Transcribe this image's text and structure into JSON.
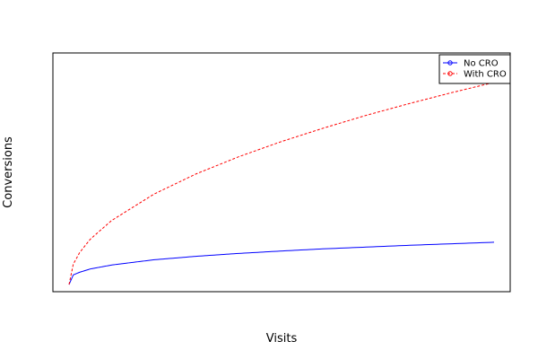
{
  "chart_data": {
    "type": "line",
    "title": "",
    "xlabel": "Visits",
    "ylabel": "Conversions",
    "x_ticks_shown": false,
    "y_ticks_shown": false,
    "grid": false,
    "legend_position": "top-right",
    "xlim": [
      0,
      100
    ],
    "ylim": [
      0,
      100
    ],
    "series": [
      {
        "name": "No CRO",
        "color": "#0000ff",
        "line_style": "solid",
        "x": [
          0,
          1,
          2.5,
          5,
          10,
          20,
          30,
          40,
          50,
          60,
          70,
          80,
          90,
          100
        ],
        "y": [
          0,
          4.4,
          5.6,
          7.1,
          8.9,
          11.3,
          12.9,
          14.2,
          15.3,
          16.3,
          17.1,
          17.9,
          18.6,
          19.3
        ]
      },
      {
        "name": "With CRO",
        "color": "#ff0000",
        "line_style": "dashed",
        "x": [
          0,
          1,
          2.5,
          5,
          10,
          20,
          30,
          40,
          50,
          60,
          70,
          80,
          90,
          100
        ],
        "y": [
          0,
          9.3,
          14.6,
          20.7,
          29.2,
          41.3,
          50.6,
          58.4,
          65.3,
          71.5,
          77.3,
          82.6,
          87.6,
          92.3
        ]
      }
    ]
  }
}
